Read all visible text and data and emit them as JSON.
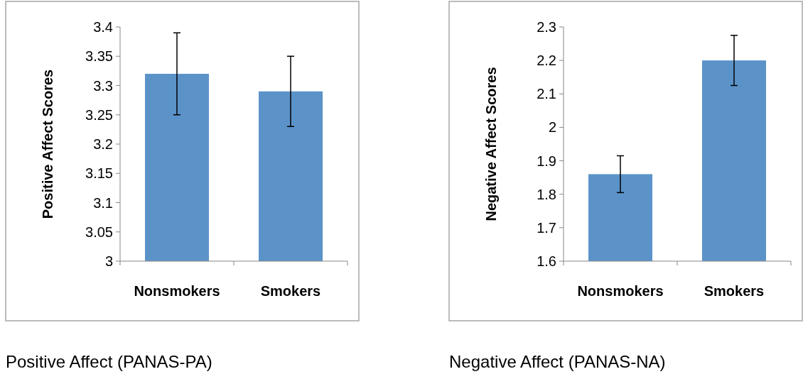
{
  "chart_data": [
    {
      "type": "bar",
      "title": "Positive Affect (PANAS-PA)",
      "ylabel": "Positive Affect Scores",
      "categories": [
        "Nonsmokers",
        "Smokers"
      ],
      "values": [
        3.32,
        3.29
      ],
      "errors": [
        [
          3.25,
          3.39
        ],
        [
          3.23,
          3.35
        ]
      ],
      "color": "#5b93c9",
      "ylim": [
        3,
        3.4
      ],
      "yticks": [
        {
          "value": 3,
          "label": "3"
        },
        {
          "value": 3.05,
          "label": "3.05"
        },
        {
          "value": 3.1,
          "label": "3.1"
        },
        {
          "value": 3.15,
          "label": "3.15"
        },
        {
          "value": 3.2,
          "label": "3.2"
        },
        {
          "value": 3.25,
          "label": "3.25"
        },
        {
          "value": 3.3,
          "label": "3.3"
        },
        {
          "value": 3.35,
          "label": "3.35"
        },
        {
          "value": 3.4,
          "label": "3.4"
        }
      ]
    },
    {
      "type": "bar",
      "title": "Negative Affect (PANAS-NA)",
      "ylabel": "Negative Affect Scores",
      "categories": [
        "Nonsmokers",
        "Smokers"
      ],
      "values": [
        1.86,
        2.2
      ],
      "errors": [
        [
          1.805,
          1.915
        ],
        [
          2.125,
          2.275
        ]
      ],
      "color": "#5b93c9",
      "ylim": [
        1.6,
        2.3
      ],
      "yticks": [
        {
          "value": 1.6,
          "label": "1.6"
        },
        {
          "value": 1.7,
          "label": "1.7"
        },
        {
          "value": 1.8,
          "label": "1.8"
        },
        {
          "value": 1.9,
          "label": "1.9"
        },
        {
          "value": 2,
          "label": "2"
        },
        {
          "value": 2.1,
          "label": "2.1"
        },
        {
          "value": 2.2,
          "label": "2.2"
        },
        {
          "value": 2.3,
          "label": "2.3"
        }
      ]
    }
  ]
}
